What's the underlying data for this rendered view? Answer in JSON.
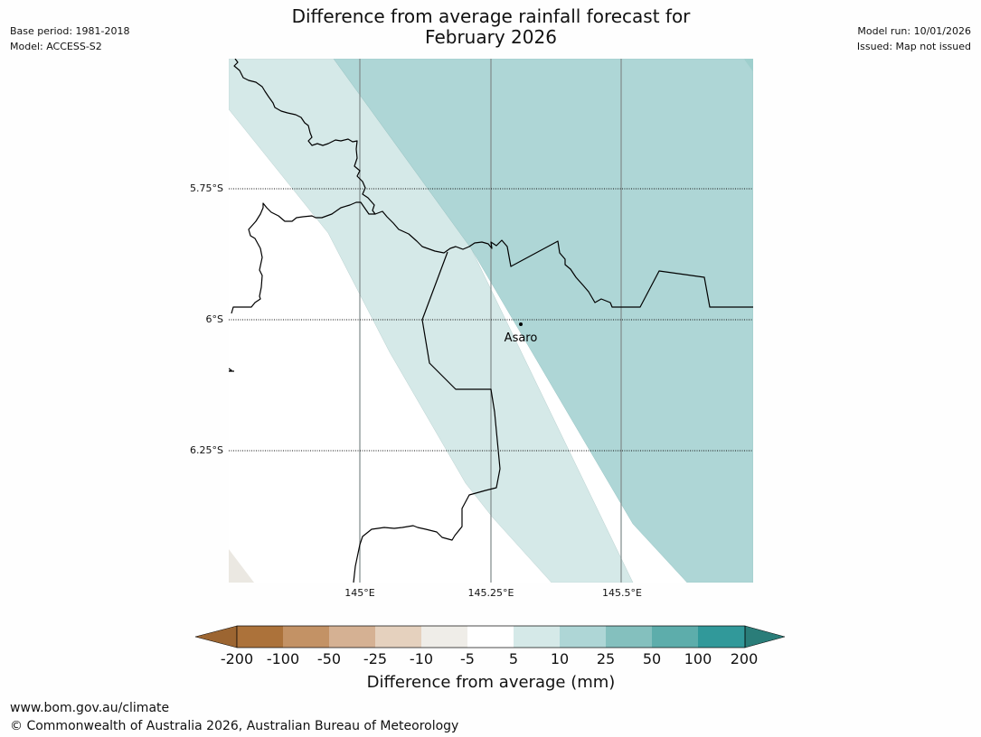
{
  "title_line1": "Difference from average rainfall forecast for",
  "title_line2": "February 2026",
  "meta_left": {
    "base_period": "Base period: 1981-2018",
    "model": "Model: ACCESS-S2"
  },
  "meta_right": {
    "model_run": "Model run: 10/01/2026",
    "issued": "Issued: Map not issued"
  },
  "map": {
    "latitude_labels": [
      "5.75°S",
      "6°S",
      "6.25°S"
    ],
    "longitude_labels": [
      "145°E",
      "145.25°E",
      "145.5°E"
    ],
    "town": {
      "name": "Asaro",
      "lat": -6.01,
      "lon": 145.28
    }
  },
  "colorbar": {
    "title": "Difference from average (mm)",
    "tick_labels": [
      "-200",
      "-100",
      "-50",
      "-25",
      "-10",
      "-5",
      "5",
      "10",
      "25",
      "50",
      "100",
      "200"
    ],
    "colors": [
      "#9c6531",
      "#ac723a",
      "#c39265",
      "#d5b193",
      "#e5d1be",
      "#efede8",
      "#ffffff",
      "#d5e9e8",
      "#aed6d6",
      "#84c0be",
      "#5dadab",
      "#31999a",
      "#2a7d79"
    ]
  },
  "footer": {
    "url": "www.bom.gov.au/climate",
    "copyright": "© Commonwealth of Australia 2026, Australian Bureau of Meteorology"
  }
}
